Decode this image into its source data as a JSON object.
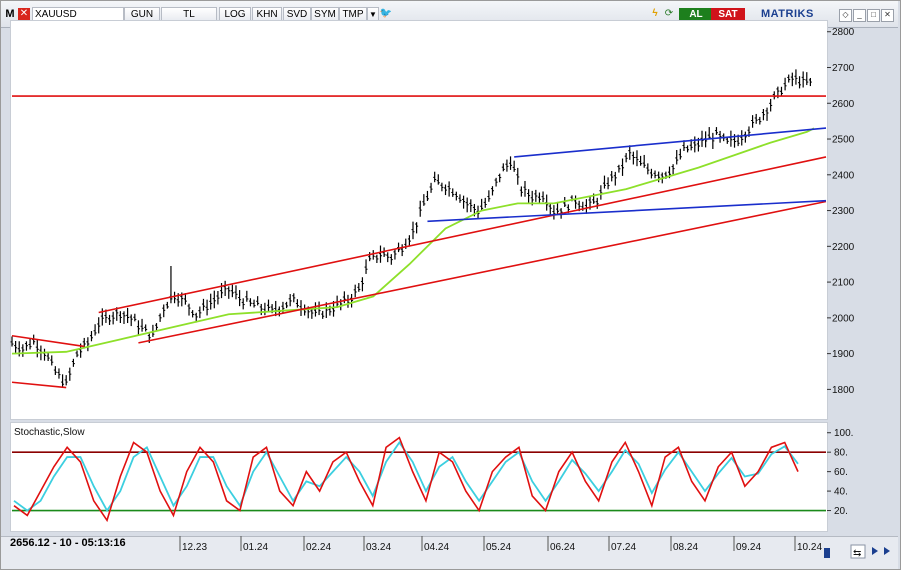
{
  "toolbar": {
    "logo": "M",
    "symbol": "XAUUSD",
    "buttons": [
      "GUN",
      "TL",
      "LOG",
      "KHN",
      "SVD",
      "SYM",
      "TMP"
    ],
    "buy_label": "AL",
    "sell_label": "SAT",
    "brand": "MATRIKS"
  },
  "status": {
    "readout": "2656.12 - 10 - 05:13:16"
  },
  "colors": {
    "candle": "#000000",
    "red_line": "#e01010",
    "blue_line": "#1a2ecc",
    "ma_line": "#8ee02a",
    "stoch_k": "#e01010",
    "stoch_d": "#3ccfe0",
    "stoch_upper": "#8b0000",
    "stoch_lower": "#1a8a1a"
  },
  "chart_data": [
    {
      "type": "candlestick",
      "symbol": "XAUUSD",
      "ylim": [
        1720,
        2830
      ],
      "y_ticks": [
        1800,
        1900,
        2000,
        2100,
        2200,
        2300,
        2400,
        2500,
        2600,
        2700,
        2800
      ],
      "x_labels": [
        "12.23",
        "01.24",
        "02.24",
        "03.24",
        "04.24",
        "05.24",
        "06.24",
        "07.24",
        "08.24",
        "09.24",
        "10.24"
      ],
      "last_price": 2656.12,
      "close_path": [
        [
          0,
          1930
        ],
        [
          6,
          1915
        ],
        [
          12,
          1935
        ],
        [
          18,
          1905
        ],
        [
          24,
          1850
        ],
        [
          30,
          1815
        ],
        [
          36,
          1900
        ],
        [
          42,
          1930
        ],
        [
          48,
          1985
        ],
        [
          54,
          2005
        ],
        [
          60,
          2015
        ],
        [
          66,
          2000
        ],
        [
          72,
          1970
        ],
        [
          78,
          1950
        ],
        [
          84,
          2030
        ],
        [
          90,
          2065
        ],
        [
          96,
          2045
        ],
        [
          102,
          2010
        ],
        [
          108,
          2035
        ],
        [
          114,
          2060
        ],
        [
          120,
          2080
        ],
        [
          126,
          2055
        ],
        [
          132,
          2040
        ],
        [
          138,
          2030
        ],
        [
          144,
          2020
        ],
        [
          150,
          2035
        ],
        [
          156,
          2050
        ],
        [
          162,
          2030
        ],
        [
          168,
          2010
        ],
        [
          174,
          2020
        ],
        [
          180,
          2035
        ],
        [
          186,
          2050
        ],
        [
          192,
          2080
        ],
        [
          198,
          2160
        ],
        [
          204,
          2180
        ],
        [
          210,
          2170
        ],
        [
          216,
          2200
        ],
        [
          222,
          2240
        ],
        [
          228,
          2320
        ],
        [
          234,
          2380
        ],
        [
          240,
          2370
        ],
        [
          246,
          2350
        ],
        [
          252,
          2320
        ],
        [
          258,
          2300
        ],
        [
          264,
          2330
        ],
        [
          270,
          2400
        ],
        [
          276,
          2440
        ],
        [
          282,
          2360
        ],
        [
          288,
          2340
        ],
        [
          294,
          2345
        ],
        [
          300,
          2300
        ],
        [
          306,
          2310
        ],
        [
          312,
          2330
        ],
        [
          318,
          2310
        ],
        [
          324,
          2330
        ],
        [
          330,
          2380
        ],
        [
          336,
          2410
        ],
        [
          342,
          2460
        ],
        [
          348,
          2430
        ],
        [
          354,
          2410
        ],
        [
          360,
          2400
        ],
        [
          366,
          2420
        ],
        [
          372,
          2470
        ],
        [
          378,
          2480
        ],
        [
          384,
          2500
        ],
        [
          390,
          2510
        ],
        [
          396,
          2490
        ],
        [
          402,
          2500
        ],
        [
          408,
          2530
        ],
        [
          414,
          2560
        ],
        [
          420,
          2600
        ],
        [
          426,
          2640
        ],
        [
          432,
          2670
        ],
        [
          438,
          2660
        ],
        [
          444,
          2655
        ]
      ],
      "moving_average": [
        [
          0,
          1900
        ],
        [
          30,
          1905
        ],
        [
          60,
          1940
        ],
        [
          90,
          1975
        ],
        [
          120,
          2010
        ],
        [
          150,
          2020
        ],
        [
          180,
          2030
        ],
        [
          200,
          2060
        ],
        [
          220,
          2150
        ],
        [
          240,
          2250
        ],
        [
          260,
          2300
        ],
        [
          280,
          2320
        ],
        [
          300,
          2320
        ],
        [
          320,
          2340
        ],
        [
          340,
          2360
        ],
        [
          360,
          2390
        ],
        [
          380,
          2420
        ],
        [
          400,
          2455
        ],
        [
          420,
          2490
        ],
        [
          440,
          2520
        ],
        [
          444,
          2530
        ]
      ],
      "trend_lines": [
        {
          "color": "red",
          "from": [
            -10,
            2620
          ],
          "to": [
            460,
            2620
          ]
        },
        {
          "color": "red",
          "from": [
            0,
            1950
          ],
          "to": [
            40,
            1920
          ]
        },
        {
          "color": "red",
          "from": [
            0,
            1820
          ],
          "to": [
            30,
            1805
          ]
        },
        {
          "color": "red",
          "from": [
            48,
            2015
          ],
          "to": [
            460,
            2460
          ]
        },
        {
          "color": "red",
          "from": [
            70,
            1930
          ],
          "to": [
            460,
            2335
          ]
        },
        {
          "color": "blue",
          "from": [
            230,
            2270
          ],
          "to": [
            460,
            2330
          ]
        },
        {
          "color": "blue",
          "from": [
            278,
            2450
          ],
          "to": [
            460,
            2535
          ]
        }
      ]
    },
    {
      "type": "line",
      "title": "Stochastic,Slow",
      "ylim": [
        0,
        110
      ],
      "y_ticks": [
        20,
        40,
        60,
        80,
        100
      ],
      "levels": [
        80,
        20
      ],
      "series": [
        {
          "values": [
            25,
            15,
            40,
            65,
            85,
            70,
            30,
            10,
            55,
            90,
            80,
            40,
            15,
            60,
            85,
            70,
            30,
            20,
            75,
            85,
            40,
            25,
            60,
            40,
            70,
            80,
            50,
            25,
            85,
            95,
            60,
            30,
            80,
            70,
            40,
            20,
            60,
            75,
            85,
            35,
            20,
            60,
            80,
            50,
            30,
            70,
            90,
            60,
            25,
            75,
            85,
            50,
            30,
            65,
            80,
            45,
            60,
            85,
            90,
            60
          ]
        },
        {
          "values": [
            30,
            20,
            30,
            55,
            75,
            75,
            45,
            20,
            40,
            75,
            85,
            55,
            25,
            45,
            75,
            75,
            45,
            25,
            60,
            80,
            55,
            30,
            50,
            45,
            60,
            75,
            60,
            35,
            70,
            90,
            70,
            40,
            65,
            75,
            50,
            30,
            50,
            70,
            80,
            50,
            30,
            50,
            72,
            58,
            40,
            60,
            82,
            68,
            38,
            62,
            80,
            60,
            40,
            58,
            74,
            55,
            58,
            78,
            86,
            68
          ]
        }
      ]
    }
  ]
}
